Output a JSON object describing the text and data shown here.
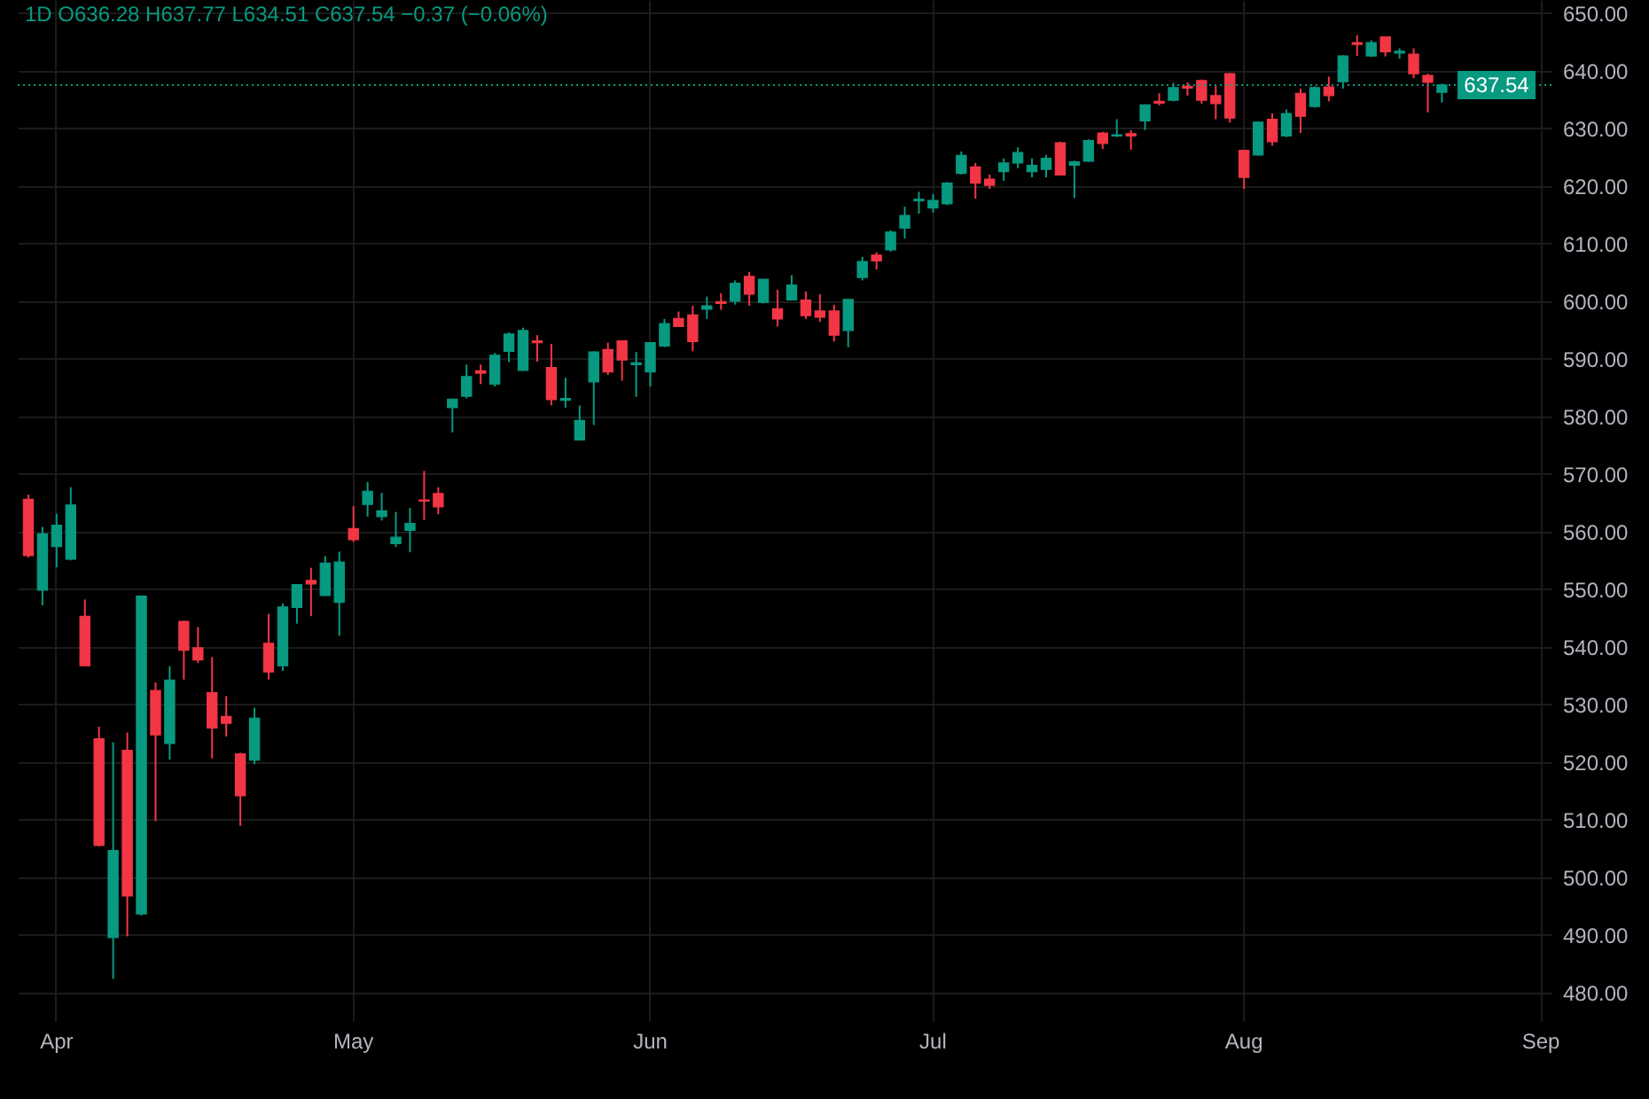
{
  "chart_data": {
    "type": "candlestick",
    "annotations": [
      "1D  O636.28  H637.77  L634.51  C637.54  −0.37 (−0.06%)"
    ],
    "categories": [
      null,
      null,
      "Apr",
      null,
      null,
      null,
      null,
      null,
      null,
      null,
      null,
      null,
      null,
      null,
      null,
      null,
      null,
      null,
      null,
      null,
      null,
      null,
      null,
      "May",
      null,
      null,
      null,
      null,
      null,
      null,
      null,
      null,
      null,
      null,
      null,
      null,
      null,
      null,
      null,
      null,
      null,
      null,
      null,
      null,
      "Jun",
      null,
      null,
      null,
      null,
      null,
      null,
      null,
      null,
      null,
      null,
      null,
      null,
      null,
      null,
      null,
      null,
      null,
      null,
      null,
      "Jul",
      null,
      null,
      null,
      null,
      null,
      null,
      null,
      null,
      null,
      null,
      null,
      null,
      null,
      null,
      null,
      null,
      null,
      null,
      null,
      null,
      null,
      "Aug",
      null,
      null,
      null,
      null,
      null,
      null,
      null,
      null,
      null,
      null,
      null,
      null,
      null,
      null,
      null,
      null,
      null,
      null,
      null,
      null,
      "Sep"
    ],
    "ohlc": [
      [
        565.6,
        566.4,
        555.5,
        555.8
      ],
      [
        549.8,
        560.8,
        547.2,
        559.6
      ],
      [
        557.4,
        563.1,
        553.8,
        561.1
      ],
      [
        555.2,
        567.7,
        555.0,
        564.6
      ],
      [
        545.3,
        548.2,
        536.7,
        536.7
      ],
      [
        524.0,
        526.1,
        505.3,
        505.5
      ],
      [
        489.5,
        523.4,
        482.3,
        504.6
      ],
      [
        522.0,
        525.1,
        489.7,
        496.7
      ],
      [
        493.6,
        548.8,
        493.3,
        548.8
      ],
      [
        532.4,
        533.8,
        509.7,
        524.7
      ],
      [
        523.2,
        536.6,
        520.4,
        534.2
      ],
      [
        544.4,
        544.5,
        534.3,
        539.4
      ],
      [
        539.8,
        543.4,
        537.2,
        537.7
      ],
      [
        532.0,
        538.2,
        520.6,
        525.9
      ],
      [
        527.9,
        531.4,
        524.4,
        526.7
      ],
      [
        521.4,
        521.6,
        508.9,
        514.1
      ],
      [
        520.3,
        529.4,
        519.6,
        527.6
      ],
      [
        540.6,
        545.7,
        534.3,
        535.6
      ],
      [
        536.7,
        547.5,
        535.8,
        546.9
      ],
      [
        546.8,
        550.9,
        544.0,
        550.8
      ],
      [
        551.5,
        553.7,
        545.3,
        550.9
      ],
      [
        548.9,
        555.7,
        548.8,
        554.5
      ],
      [
        547.7,
        556.5,
        541.9,
        554.7
      ],
      [
        560.5,
        564.4,
        558.2,
        558.6
      ],
      [
        564.7,
        568.6,
        562.6,
        567.0
      ],
      [
        562.6,
        566.7,
        561.9,
        563.6
      ],
      [
        557.9,
        563.4,
        557.3,
        559.0
      ],
      [
        560.2,
        564.1,
        556.4,
        561.4
      ],
      [
        565.5,
        570.5,
        562.0,
        565.3
      ],
      [
        566.6,
        567.7,
        563.0,
        564.3
      ],
      [
        581.5,
        583.0,
        577.2,
        583.0
      ],
      [
        583.5,
        589.0,
        583.1,
        586.9
      ],
      [
        587.9,
        589.0,
        585.6,
        587.5
      ],
      [
        585.6,
        591.0,
        585.2,
        590.6
      ],
      [
        591.3,
        594.6,
        589.4,
        594.3
      ],
      [
        588.0,
        595.4,
        587.9,
        594.9
      ],
      [
        593.1,
        594.1,
        589.5,
        592.8
      ],
      [
        588.5,
        592.6,
        581.9,
        582.9
      ],
      [
        582.8,
        586.7,
        581.5,
        583.1
      ],
      [
        575.9,
        581.9,
        575.8,
        579.3
      ],
      [
        586.0,
        591.3,
        578.5,
        591.2
      ],
      [
        591.6,
        592.8,
        587.2,
        587.7
      ],
      [
        593.1,
        593.2,
        586.2,
        589.8
      ],
      [
        589.0,
        591.2,
        583.4,
        589.3
      ],
      [
        587.7,
        592.9,
        585.2,
        592.8
      ],
      [
        592.2,
        596.9,
        592.0,
        596.1
      ],
      [
        597.0,
        598.2,
        595.5,
        595.6
      ],
      [
        597.6,
        599.2,
        591.3,
        593.0
      ],
      [
        598.6,
        600.8,
        596.9,
        599.2
      ],
      [
        599.9,
        601.4,
        598.5,
        599.6
      ],
      [
        600.0,
        603.6,
        599.4,
        603.1
      ],
      [
        604.3,
        605.1,
        599.2,
        601.2
      ],
      [
        599.8,
        603.8,
        599.6,
        603.8
      ],
      [
        598.7,
        602.0,
        595.6,
        596.9
      ],
      [
        600.2,
        604.5,
        600.1,
        602.8
      ],
      [
        600.2,
        601.7,
        596.9,
        597.5
      ],
      [
        598.3,
        601.2,
        596.4,
        597.2
      ],
      [
        598.3,
        599.4,
        593.0,
        594.1
      ],
      [
        594.9,
        600.4,
        592.0,
        600.3
      ],
      [
        604.1,
        607.7,
        603.6,
        606.9
      ],
      [
        608.0,
        608.5,
        605.5,
        607.0
      ],
      [
        608.9,
        612.3,
        608.6,
        612.0
      ],
      [
        612.7,
        616.4,
        610.9,
        614.9
      ],
      [
        617.4,
        619.0,
        615.2,
        617.7
      ],
      [
        616.2,
        618.6,
        615.4,
        617.5
      ],
      [
        616.9,
        620.7,
        616.7,
        620.5
      ],
      [
        622.2,
        626.0,
        622.0,
        625.3
      ],
      [
        623.3,
        624.0,
        617.8,
        620.5
      ],
      [
        621.2,
        622.0,
        619.5,
        620.1
      ],
      [
        622.5,
        624.8,
        620.9,
        624.0
      ],
      [
        624.0,
        626.7,
        623.1,
        625.8
      ],
      [
        622.5,
        624.8,
        621.5,
        623.6
      ],
      [
        622.9,
        625.4,
        621.5,
        624.8
      ],
      [
        627.5,
        627.7,
        621.8,
        621.9
      ],
      [
        623.6,
        624.4,
        617.9,
        624.2
      ],
      [
        624.3,
        628.1,
        624.2,
        627.9
      ],
      [
        629.2,
        629.4,
        626.4,
        627.4
      ],
      [
        628.7,
        631.6,
        628.5,
        628.9
      ],
      [
        629.1,
        629.7,
        626.3,
        628.7
      ],
      [
        631.3,
        634.2,
        629.7,
        634.1
      ],
      [
        634.7,
        636.1,
        634.0,
        634.4
      ],
      [
        634.9,
        637.9,
        634.7,
        637.1
      ],
      [
        637.3,
        638.0,
        635.7,
        637.0
      ],
      [
        638.3,
        638.5,
        634.3,
        634.9
      ],
      [
        635.7,
        637.4,
        631.6,
        634.3
      ],
      [
        639.5,
        639.6,
        631.0,
        631.8
      ],
      [
        626.2,
        626.3,
        619.5,
        621.5
      ],
      [
        625.4,
        631.2,
        625.3,
        631.1
      ],
      [
        631.6,
        632.6,
        627.0,
        627.7
      ],
      [
        628.7,
        633.3,
        628.5,
        632.6
      ],
      [
        636.1,
        636.9,
        629.2,
        632.1
      ],
      [
        633.8,
        637.3,
        633.6,
        637.1
      ],
      [
        637.2,
        639.0,
        634.7,
        635.7
      ],
      [
        638.1,
        642.7,
        636.9,
        642.6
      ],
      [
        644.9,
        646.2,
        642.6,
        644.6
      ],
      [
        642.6,
        645.3,
        642.4,
        644.9
      ],
      [
        645.9,
        646.0,
        642.5,
        643.3
      ],
      [
        643.1,
        643.9,
        642.1,
        643.4
      ],
      [
        642.9,
        643.9,
        638.7,
        639.5
      ],
      [
        639.2,
        639.5,
        632.8,
        638.0
      ],
      [
        636.28,
        637.77,
        634.51,
        637.54
      ],
      null,
      null,
      null,
      null,
      null,
      null,
      null
    ],
    "colors": [
      "#f23645",
      "#089981",
      "#089981",
      "#089981",
      "#f23645",
      "#f23645",
      "#089981",
      "#f23645",
      "#089981",
      "#f23645",
      "#089981",
      "#f23645",
      "#f23645",
      "#f23645",
      "#f23645",
      "#f23645",
      "#089981",
      "#f23645",
      "#089981",
      "#089981",
      "#f23645",
      "#089981",
      "#089981",
      "#f23645",
      "#089981",
      "#089981",
      "#089981",
      "#089981",
      "#f23645",
      "#f23645",
      "#089981",
      "#089981",
      "#f23645",
      "#089981",
      "#089981",
      "#089981",
      "#f23645",
      "#f23645",
      "#089981",
      "#089981",
      "#089981",
      "#f23645",
      "#f23645",
      "#089981",
      "#089981",
      "#089981",
      "#f23645",
      "#f23645",
      "#089981",
      "#f23645",
      "#089981",
      "#f23645",
      "#089981",
      "#f23645",
      "#089981",
      "#f23645",
      "#f23645",
      "#f23645",
      "#089981",
      "#089981",
      "#f23645",
      "#089981",
      "#089981",
      "#089981",
      "#089981",
      "#089981",
      "#089981",
      "#f23645",
      "#f23645",
      "#089981",
      "#089981",
      "#089981",
      "#089981",
      "#f23645",
      "#089981",
      "#089981",
      "#f23645",
      "#089981",
      "#f23645",
      "#089981",
      "#f23645",
      "#089981",
      "#f23645",
      "#f23645",
      "#f23645",
      "#f23645",
      "#f23645",
      "#089981",
      "#f23645",
      "#089981",
      "#f23645",
      "#089981",
      "#f23645",
      "#089981",
      "#f23645",
      "#089981",
      "#f23645",
      "#089981",
      "#f23645",
      "#f23645",
      "#089981",
      null,
      null,
      null,
      null,
      null,
      null,
      null
    ],
    "ylim": [
      475,
      652.3
    ],
    "yticks": [
      {
        "value": 480,
        "label": "480.00"
      },
      {
        "value": 490,
        "label": "490.00"
      },
      {
        "value": 500,
        "label": "500.00"
      },
      {
        "value": 510,
        "label": "510.00"
      },
      {
        "value": 520,
        "label": "520.00"
      },
      {
        "value": 530,
        "label": "530.00"
      },
      {
        "value": 540,
        "label": "540.00"
      },
      {
        "value": 550,
        "label": "550.00"
      },
      {
        "value": 560,
        "label": "560.00"
      },
      {
        "value": 570,
        "label": "570.00"
      },
      {
        "value": 580,
        "label": "580.00"
      },
      {
        "value": 590,
        "label": "590.00"
      },
      {
        "value": 600,
        "label": "600.00"
      },
      {
        "value": 610,
        "label": "610.00"
      },
      {
        "value": 620,
        "label": "620.00"
      },
      {
        "value": 630,
        "label": "630.00"
      },
      {
        "value": 640,
        "label": "640.00"
      },
      {
        "value": 650,
        "label": "650.00"
      }
    ],
    "grid": true,
    "ref_lines": [
      {
        "axis": "y",
        "value": 637.54,
        "label": "637.54",
        "color": "#089981",
        "line_style": "dotted"
      }
    ]
  }
}
